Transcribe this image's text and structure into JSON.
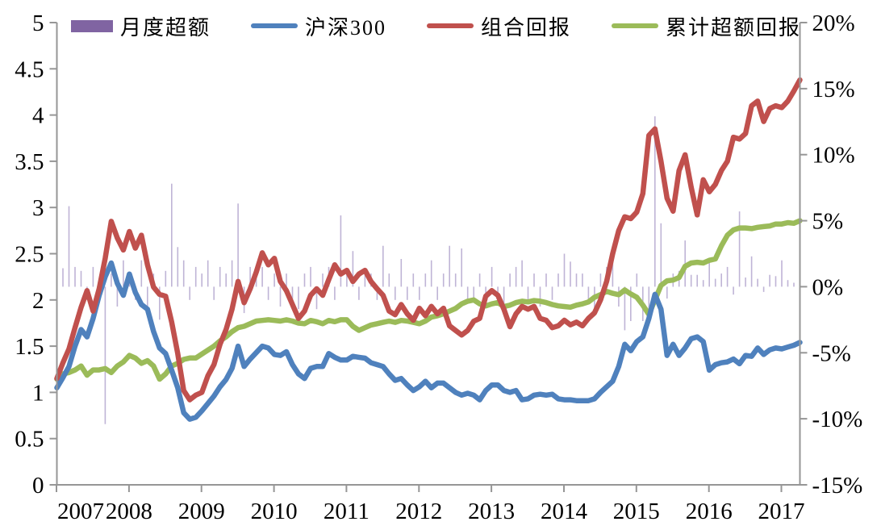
{
  "legend": [
    {
      "label": "月度超额",
      "type": "bar",
      "color": "#8064A2"
    },
    {
      "label": "沪深300",
      "type": "line",
      "color": "#4F81BD"
    },
    {
      "label": "组合回报",
      "type": "line",
      "color": "#C0504D"
    },
    {
      "label": "累计超额回报",
      "type": "line",
      "color": "#9BBB59"
    }
  ],
  "axes": {
    "left_tick_labels": [
      "5",
      "4.5",
      "4",
      "3.5",
      "3",
      "2.5",
      "2",
      "1.5",
      "1",
      "0.5",
      "0"
    ],
    "left_tick_values": [
      5,
      4.5,
      4,
      3.5,
      3,
      2.5,
      2,
      1.5,
      1,
      0.5,
      0
    ],
    "right_tick_labels": [
      "20%",
      "15%",
      "10%",
      "5%",
      "0%",
      "-5%",
      "-10%",
      "-15%"
    ],
    "right_tick_values": [
      20,
      15,
      10,
      5,
      0,
      -5,
      -10,
      -15
    ],
    "x_tick_labels": [
      "2007",
      "2008",
      "2009",
      "2010",
      "2011",
      "2012",
      "2013",
      "2014",
      "2015",
      "2016",
      "2017"
    ],
    "left_range": [
      0,
      5
    ],
    "right_range": [
      -15,
      20
    ],
    "axis_color": "#969696",
    "text_color": "#000000"
  },
  "chart_data": {
    "type": "combo",
    "x_frequency": "monthly",
    "x_start": "2007-01",
    "x_end": "2017-04",
    "x_axis_years": [
      2007,
      2008,
      2009,
      2010,
      2011,
      2012,
      2013,
      2014,
      2015,
      2016,
      2017
    ],
    "left_axis_range": [
      0,
      5
    ],
    "right_axis_range_percent": [
      -15,
      20
    ],
    "grid": false,
    "legend_position": "top",
    "series": [
      {
        "name": "月度超额",
        "type": "bar",
        "axis": "right",
        "unit": "%",
        "color": "#BFB4D6",
        "values": [
          0.8,
          1.4,
          6.1,
          1.5,
          1.2,
          -1.0,
          1.5,
          -1.0,
          -10.4,
          1.0,
          -1.5,
          2.0,
          1.0,
          -1.0,
          2.0,
          -1.5,
          1.0,
          -2.5,
          1.2,
          7.8,
          3.0,
          2.0,
          -1.0,
          1.5,
          1.0,
          2.0,
          -1.0,
          1.5,
          1.0,
          2.0,
          6.3,
          -2.0,
          1.5,
          1.0,
          1.5,
          -1.0,
          1.0,
          -1.5,
          1.0,
          -1.0,
          -1.7,
          1.0,
          1.5,
          -1.7,
          1.0,
          1.5,
          -1.0,
          5.4,
          1.0,
          2.7,
          -1.0,
          1.0,
          1.0,
          -1.0,
          3.1,
          1.0,
          -1.0,
          2.1,
          -1.0,
          1.0,
          -1.0,
          1.0,
          2.0,
          -1.0,
          1.0,
          3.1,
          1.0,
          2.9,
          -1.2,
          -1.2,
          1.0,
          -1.0,
          1.5,
          -1.0,
          -1.5,
          1.0,
          1.5,
          2.0,
          -1.0,
          1.0,
          -1.5,
          1.0,
          -1.0,
          1.0,
          2.5,
          1.9,
          1.0,
          1.0,
          -1.0,
          -1.7,
          1.0,
          1.5,
          2.0,
          -1.5,
          -3.3,
          -2.6,
          1.0,
          -2.6,
          -2.0,
          12.9,
          4.8,
          -0.9,
          1.0,
          1.2,
          3.5,
          0.9,
          0.9,
          0.5,
          2.0,
          0.6,
          1.0,
          1.5,
          -0.6,
          5.7,
          0.7,
          2.3,
          0.6,
          -0.4,
          0.9,
          0.8,
          2.0,
          0.5,
          0.3,
          1.7
        ]
      },
      {
        "name": "沪深300",
        "type": "line",
        "axis": "left",
        "color": "#4F81BD",
        "values": [
          1.05,
          1.16,
          1.28,
          1.5,
          1.68,
          1.6,
          1.8,
          2.05,
          2.25,
          2.4,
          2.18,
          2.05,
          2.28,
          2.08,
          1.95,
          1.9,
          1.66,
          1.48,
          1.42,
          1.24,
          1.05,
          0.78,
          0.71,
          0.73,
          0.8,
          0.88,
          0.96,
          1.06,
          1.14,
          1.26,
          1.5,
          1.28,
          1.36,
          1.43,
          1.5,
          1.48,
          1.41,
          1.4,
          1.44,
          1.3,
          1.2,
          1.15,
          1.26,
          1.28,
          1.28,
          1.42,
          1.38,
          1.35,
          1.35,
          1.39,
          1.38,
          1.37,
          1.32,
          1.3,
          1.28,
          1.2,
          1.13,
          1.15,
          1.08,
          1.02,
          1.06,
          1.12,
          1.05,
          1.1,
          1.1,
          1.05,
          1.0,
          0.97,
          0.99,
          0.97,
          0.92,
          1.02,
          1.08,
          1.08,
          1.02,
          1.0,
          1.02,
          0.92,
          0.93,
          0.97,
          0.98,
          0.97,
          0.98,
          0.93,
          0.92,
          0.92,
          0.91,
          0.91,
          0.91,
          0.93,
          1.0,
          1.06,
          1.12,
          1.28,
          1.52,
          1.45,
          1.55,
          1.6,
          1.8,
          2.06,
          1.9,
          1.4,
          1.52,
          1.4,
          1.48,
          1.58,
          1.6,
          1.55,
          1.24,
          1.3,
          1.32,
          1.33,
          1.36,
          1.31,
          1.4,
          1.39,
          1.48,
          1.41,
          1.46,
          1.48,
          1.47,
          1.49,
          1.51,
          1.54
        ]
      },
      {
        "name": "组合回报",
        "type": "line",
        "axis": "left",
        "color": "#C0504D",
        "values": [
          1.15,
          1.32,
          1.47,
          1.7,
          1.92,
          2.1,
          1.88,
          2.12,
          2.45,
          2.85,
          2.67,
          2.54,
          2.74,
          2.56,
          2.7,
          2.38,
          2.14,
          2.06,
          2.04,
          1.76,
          1.42,
          1.02,
          0.92,
          0.97,
          1.0,
          1.18,
          1.3,
          1.52,
          1.68,
          1.9,
          2.2,
          1.97,
          2.12,
          2.3,
          2.51,
          2.38,
          2.45,
          2.2,
          2.1,
          1.95,
          1.8,
          1.88,
          2.05,
          2.12,
          2.05,
          2.22,
          2.38,
          2.28,
          2.32,
          2.2,
          2.28,
          2.32,
          2.2,
          2.12,
          2.05,
          1.88,
          1.84,
          1.95,
          1.85,
          1.78,
          1.91,
          1.83,
          1.93,
          1.85,
          1.91,
          1.72,
          1.67,
          1.62,
          1.67,
          1.77,
          1.8,
          2.04,
          2.1,
          2.05,
          1.9,
          1.71,
          1.85,
          1.93,
          1.9,
          1.93,
          1.8,
          1.78,
          1.7,
          1.72,
          1.78,
          1.73,
          1.76,
          1.72,
          1.8,
          1.86,
          2.0,
          2.2,
          2.5,
          2.75,
          2.9,
          2.88,
          2.95,
          3.15,
          3.78,
          3.85,
          3.5,
          3.1,
          2.96,
          3.4,
          3.57,
          3.22,
          2.92,
          3.3,
          3.17,
          3.25,
          3.4,
          3.5,
          3.76,
          3.74,
          3.8,
          4.1,
          4.15,
          3.93,
          4.07,
          4.1,
          4.08,
          4.15,
          4.26,
          4.38
        ]
      },
      {
        "name": "累计超额回报",
        "type": "line",
        "axis": "right",
        "unit": "%",
        "color": "#9BBB59",
        "values": [
          -7.0,
          -6.6,
          -6.5,
          -6.3,
          -6.0,
          -6.7,
          -6.3,
          -6.3,
          -6.2,
          -6.5,
          -6.0,
          -5.7,
          -5.2,
          -5.4,
          -5.8,
          -5.6,
          -6.0,
          -7.0,
          -6.6,
          -6.0,
          -5.8,
          -5.5,
          -5.4,
          -5.4,
          -5.1,
          -4.8,
          -4.5,
          -4.1,
          -3.8,
          -3.4,
          -3.1,
          -3.0,
          -2.8,
          -2.6,
          -2.55,
          -2.5,
          -2.55,
          -2.6,
          -2.5,
          -2.6,
          -2.75,
          -2.8,
          -2.55,
          -2.65,
          -2.8,
          -2.55,
          -2.65,
          -2.5,
          -2.5,
          -3.0,
          -3.3,
          -3.1,
          -2.9,
          -2.8,
          -2.7,
          -2.6,
          -2.7,
          -2.55,
          -2.6,
          -2.7,
          -2.8,
          -2.6,
          -2.3,
          -2.2,
          -2.05,
          -1.85,
          -1.65,
          -1.3,
          -1.1,
          -1.0,
          -1.3,
          -1.45,
          -1.3,
          -1.2,
          -1.5,
          -1.4,
          -1.2,
          -1.1,
          -1.15,
          -1.05,
          -1.1,
          -1.2,
          -1.35,
          -1.45,
          -1.5,
          -1.55,
          -1.4,
          -1.3,
          -1.15,
          -0.8,
          -0.6,
          -0.35,
          -0.5,
          -0.6,
          -0.25,
          -0.55,
          -0.8,
          -1.4,
          -2.1,
          -1.0,
          0.1,
          0.45,
          0.5,
          0.7,
          1.55,
          1.8,
          1.85,
          1.8,
          2.0,
          2.1,
          3.1,
          3.9,
          4.3,
          4.45,
          4.45,
          4.4,
          4.5,
          4.55,
          4.6,
          4.75,
          4.75,
          4.85,
          4.8,
          5.0
        ]
      }
    ]
  }
}
